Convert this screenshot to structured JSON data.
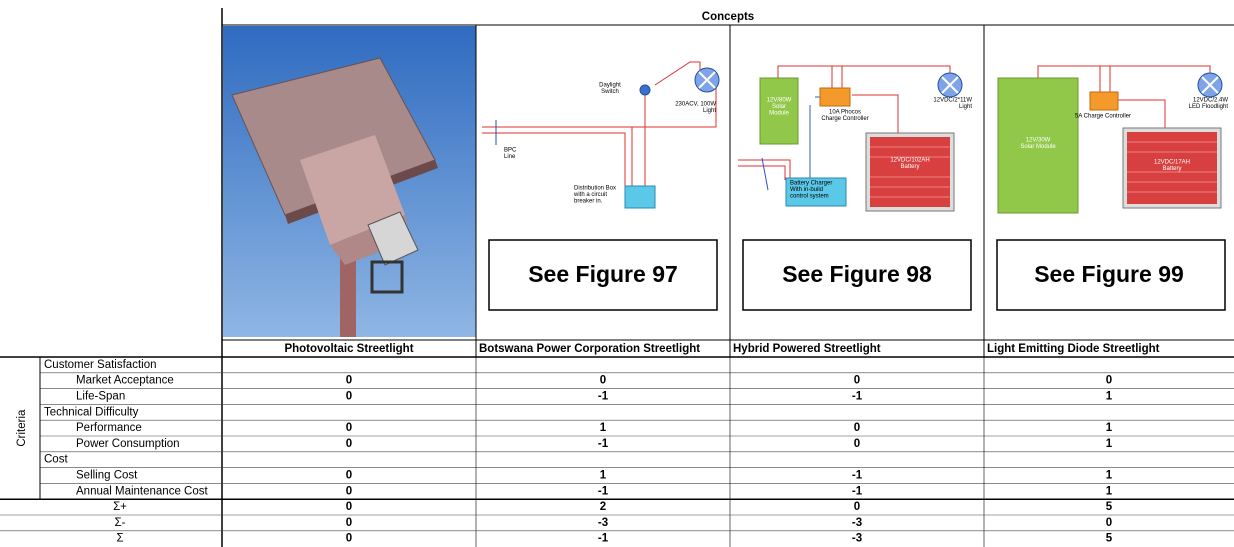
{
  "header": "Concepts",
  "axis_label": "Criteria",
  "concepts": [
    "Photovoltaic Streetlight",
    "Botswana Power Corporation Streetlight",
    "Hybrid Powered Streetlight",
    "Light Emitting Diode Streetlight"
  ],
  "figures": [
    {
      "caption": "See Figure 97",
      "labels": [
        [
          "Daylight",
          "Switch"
        ],
        [
          "230ACV, 100W",
          "Light"
        ],
        [
          "BPC",
          "Line"
        ],
        [
          "Distribution Box",
          "with a circuit",
          "breaker in."
        ]
      ]
    },
    {
      "caption": "See Figure 98",
      "labels": [
        [
          "12V/80W",
          "Solar",
          "Module"
        ],
        [
          "10A Phocos",
          "Charge Controller"
        ],
        [
          "12VDC/2*11W",
          "Light"
        ],
        [
          "12VDC/102AH",
          "Battery"
        ],
        [
          "Battery Charger",
          "With in-build",
          "control system"
        ]
      ]
    },
    {
      "caption": "See Figure 99",
      "labels": [
        [
          "12V/30W",
          "Solar Module"
        ],
        [
          "5A Charge Controller"
        ],
        [
          "12VDC/2.4W",
          "LED Floodlight"
        ],
        [
          "12VDC/17AH",
          "Battery"
        ]
      ]
    }
  ],
  "rows": [
    {
      "label": "Customer Satisfaction"
    },
    {
      "label": "Market Acceptance",
      "values": [
        0,
        0,
        0,
        0
      ]
    },
    {
      "label": "Life-Span",
      "values": [
        0,
        -1,
        -1,
        1
      ]
    },
    {
      "label": "Technical Difficulty"
    },
    {
      "label": "Performance",
      "values": [
        0,
        1,
        0,
        1
      ]
    },
    {
      "label": "Power Consumption",
      "values": [
        0,
        -1,
        0,
        1
      ]
    },
    {
      "label": "Cost"
    },
    {
      "label": "Selling Cost",
      "values": [
        0,
        1,
        -1,
        1
      ]
    },
    {
      "label": "Annual Maintenance Cost",
      "values": [
        0,
        -1,
        -1,
        1
      ]
    }
  ],
  "summary": [
    {
      "label": "Σ+",
      "values": [
        0,
        2,
        0,
        5
      ]
    },
    {
      "label": "Σ-",
      "values": [
        0,
        -3,
        -3,
        0
      ]
    },
    {
      "label": "Σ",
      "values": [
        0,
        -1,
        -3,
        5
      ]
    }
  ]
}
